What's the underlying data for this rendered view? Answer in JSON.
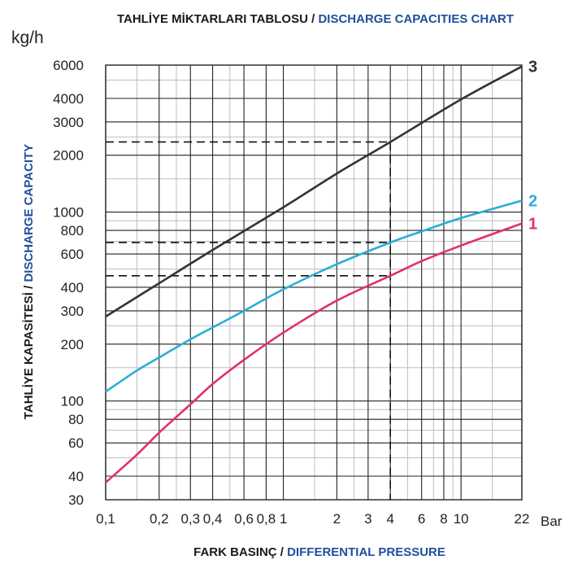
{
  "chart_data": {
    "type": "line",
    "title_tr": "TAHLİYE MİKTARLARI TABLOSU",
    "title_sep": " / ",
    "title_en": "DISCHARGE CAPACITIES CHART",
    "y_unit": "kg/h",
    "ylabel_tr": "TAHLİYE KAPASİTESİ",
    "ylabel_sep": " / ",
    "ylabel_en": "DISCHARGE CAPACITY",
    "xlabel_tr": "FARK BASINÇ",
    "xlabel_sep": " / ",
    "xlabel_en": "DIFFERENTIAL PRESSURE",
    "x_unit": "Bar",
    "x_scale": "log",
    "y_scale": "log",
    "xlim": [
      0.1,
      22
    ],
    "ylim": [
      30,
      6000
    ],
    "grid": true,
    "x_ticks": [
      0.1,
      0.2,
      0.3,
      0.4,
      0.6,
      0.8,
      1,
      2,
      3,
      4,
      6,
      8,
      10,
      22
    ],
    "x_tick_labels": [
      "0,1",
      "0,2",
      "0,3",
      "0,4",
      "0,6",
      "0,8",
      "1",
      "2",
      "3",
      "4",
      "6",
      "8",
      "10",
      "22"
    ],
    "y_ticks": [
      30,
      40,
      60,
      80,
      100,
      200,
      300,
      400,
      600,
      800,
      1000,
      2000,
      3000,
      4000,
      6000
    ],
    "y_tick_labels": [
      "30",
      "40",
      "60",
      "80",
      "100",
      "200",
      "300",
      "400",
      "600",
      "800",
      "1000",
      "2000",
      "3000",
      "4000",
      "6000"
    ],
    "series": [
      {
        "name": "1",
        "color": "#e0306e",
        "x": [
          0.1,
          0.15,
          0.2,
          0.3,
          0.4,
          0.6,
          1,
          2,
          4,
          6,
          10,
          22
        ],
        "y": [
          37,
          52,
          68,
          96,
          123,
          165,
          230,
          340,
          460,
          550,
          665,
          870
        ]
      },
      {
        "name": "2",
        "color": "#2aaed6",
        "x": [
          0.1,
          0.15,
          0.2,
          0.3,
          0.4,
          0.6,
          1,
          2,
          4,
          6,
          10,
          22
        ],
        "y": [
          112,
          145,
          170,
          212,
          245,
          300,
          390,
          530,
          690,
          790,
          930,
          1150
        ]
      },
      {
        "name": "3",
        "color": "#333333",
        "x": [
          0.1,
          0.2,
          0.4,
          1,
          2,
          4,
          10,
          22
        ],
        "y": [
          280,
          420,
          630,
          1060,
          1600,
          2350,
          3950,
          5900
        ]
      }
    ],
    "reference_lines": [
      {
        "x": 4,
        "y": 2350
      },
      {
        "x": 4,
        "y": 690
      },
      {
        "x": 4,
        "y": 460
      }
    ]
  }
}
